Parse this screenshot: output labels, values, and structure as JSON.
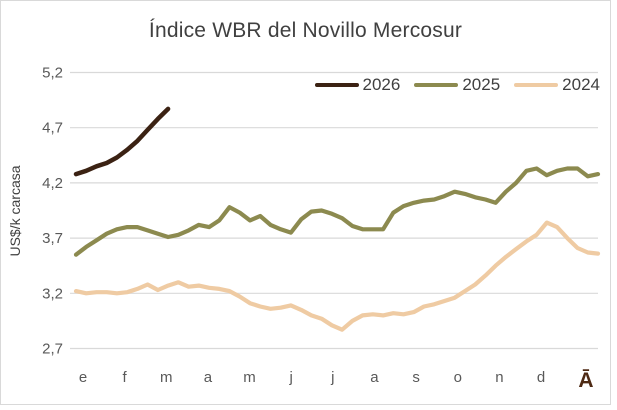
{
  "colors": {
    "background": "#FFFFFF",
    "border": "#D9D9D9",
    "gridline": "#D9D9D9",
    "tick_text": "#595959",
    "title_text": "#404040",
    "series_2026": "#3B2213",
    "series_2025": "#8C8A4F",
    "series_2024": "#EFCBA3",
    "watermark": "#4E2A14"
  },
  "watermark": {
    "text": "Ā"
  },
  "chart_data": {
    "type": "line",
    "title": "Índice WBR del Novillo Mercosur",
    "xlabel": "",
    "ylabel": "US$/k carcasa",
    "ylim": [
      2.7,
      5.2
    ],
    "y_ticks": [
      {
        "value": 5.2,
        "label": "5,2"
      },
      {
        "value": 4.7,
        "label": "4,7"
      },
      {
        "value": 4.2,
        "label": "4,2"
      },
      {
        "value": 3.7,
        "label": "3,7"
      },
      {
        "value": 3.2,
        "label": "3,2"
      },
      {
        "value": 2.7,
        "label": "2,7"
      }
    ],
    "x_tick_labels": [
      "e",
      "f",
      "m",
      "a",
      "m",
      "j",
      "j",
      "a",
      "s",
      "o",
      "n",
      "d"
    ],
    "x_resolution": "weekly (52 points per full year)",
    "grid": "horizontal",
    "legend_position": "top-right",
    "series": [
      {
        "name": "2026",
        "color": "#3B2213",
        "values": [
          4.28,
          4.31,
          4.35,
          4.38,
          4.43,
          4.5,
          4.58,
          4.68,
          4.78,
          4.87
        ]
      },
      {
        "name": "2025",
        "color": "#8C8A4F",
        "values": [
          3.55,
          3.62,
          3.68,
          3.74,
          3.78,
          3.8,
          3.8,
          3.77,
          3.74,
          3.71,
          3.73,
          3.77,
          3.82,
          3.8,
          3.86,
          3.98,
          3.93,
          3.86,
          3.9,
          3.82,
          3.78,
          3.75,
          3.87,
          3.94,
          3.95,
          3.92,
          3.88,
          3.81,
          3.78,
          3.78,
          3.78,
          3.93,
          3.99,
          4.02,
          4.04,
          4.05,
          4.08,
          4.12,
          4.1,
          4.07,
          4.05,
          4.02,
          4.12,
          4.2,
          4.31,
          4.33,
          4.27,
          4.31,
          4.33,
          4.33,
          4.26,
          4.28
        ]
      },
      {
        "name": "2024",
        "color": "#EFCBA3",
        "values": [
          3.22,
          3.2,
          3.21,
          3.21,
          3.2,
          3.21,
          3.24,
          3.28,
          3.23,
          3.27,
          3.3,
          3.26,
          3.27,
          3.25,
          3.24,
          3.22,
          3.17,
          3.11,
          3.08,
          3.06,
          3.07,
          3.09,
          3.05,
          3.0,
          2.97,
          2.91,
          2.87,
          2.95,
          3.0,
          3.01,
          3.0,
          3.02,
          3.01,
          3.03,
          3.08,
          3.1,
          3.13,
          3.16,
          3.22,
          3.28,
          3.36,
          3.45,
          3.53,
          3.6,
          3.67,
          3.73,
          3.84,
          3.8,
          3.7,
          3.61,
          3.57,
          3.56
        ]
      }
    ]
  }
}
